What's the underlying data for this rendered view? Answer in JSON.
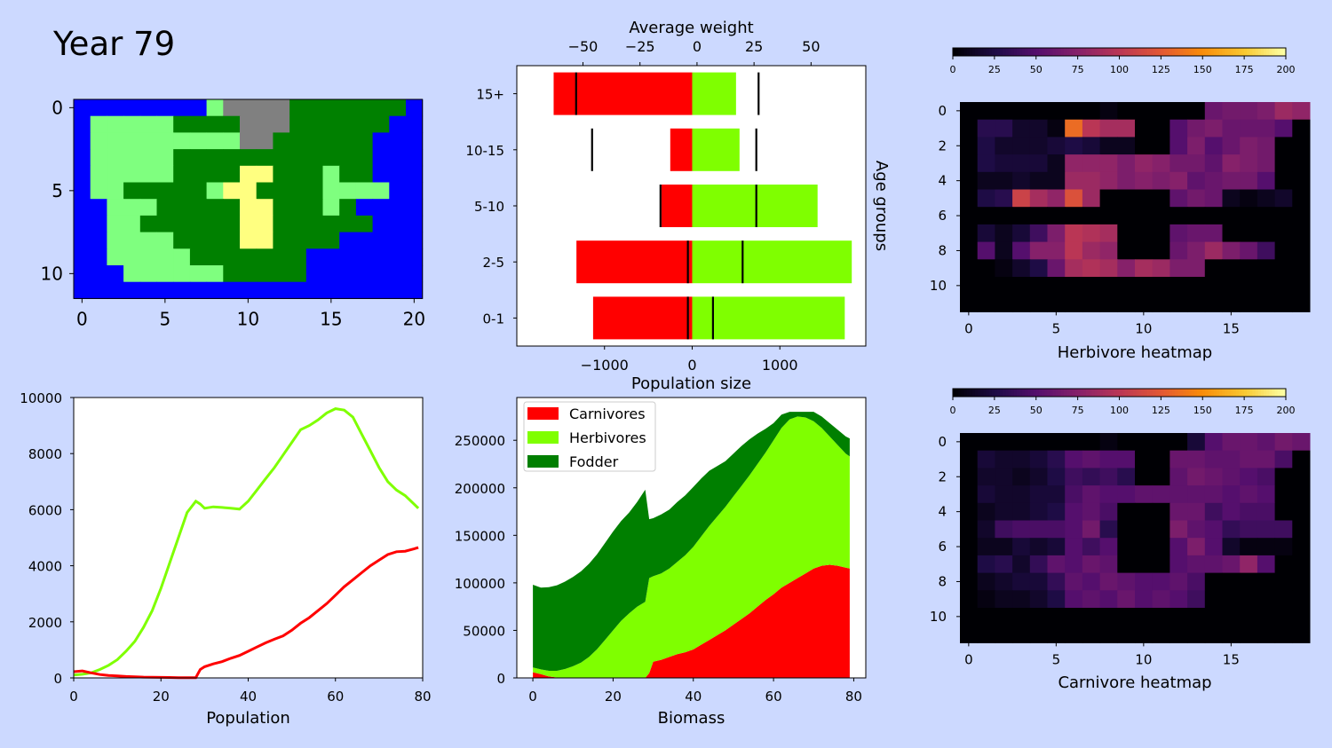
{
  "header": {
    "year_label": "Year 79"
  },
  "colors": {
    "water": "#0000ff",
    "lowland": "#7fff7f",
    "highland": "#008000",
    "desert": "#ffff80",
    "mountain": "#808080",
    "carnivores": "#ff0000",
    "herbivores": "#7fff00",
    "fodder": "#007f00",
    "panel_bg": "#ccd9ff"
  },
  "chart_data": [
    {
      "id": "island_map",
      "type": "heatmap",
      "title": "",
      "legend": {
        "W": "water",
        "L": "lowland",
        "H": "highland",
        "D": "desert",
        "M": "mountain"
      },
      "grid": [
        "WWWWWWWWLMMMMHHHHHHHW",
        "WLLLLLHHHHMMMHHHHHHWW",
        "WLLLLLLLLLMMHHHHHHWWW",
        "WLLLLLHHHHHHHHHHHHWWW",
        "WLLLLLHHHHDDHHHLHHWWW",
        "WLLHHHHHLDDHHHHLLLLWW",
        "WWLLLHHHHHDDHHHLHWWWW",
        "WWLLHHHHHHDDHHHHHHWWW",
        "WWLLLLHHHHDDHHHHWWWWW",
        "WWLLLLLHHHHHHHWWWWWWW",
        "WWWLLLLLLHHHHHWWWWWWW",
        "WWWWWWWWWWWWWWWWWWWWW"
      ],
      "xticks": [
        0,
        5,
        10,
        15,
        20
      ],
      "yticks": [
        0,
        5,
        10
      ]
    },
    {
      "id": "age_groups",
      "type": "bar",
      "title": "Average weight",
      "xlabel": "Population size",
      "ylabel": "Age groups",
      "categories": [
        "0-1",
        "2-5",
        "5-10",
        "10-15",
        "15+"
      ],
      "series": [
        {
          "name": "Carnivores",
          "values": [
            -1130,
            -1320,
            -350,
            -250,
            -1580
          ]
        },
        {
          "name": "Herbivores",
          "values": [
            1740,
            1820,
            1430,
            540,
            500
          ]
        }
      ],
      "avg_weight": {
        "carnivores": [
          -4,
          -4,
          -16,
          -46,
          -53
        ],
        "herbivores": [
          7,
          20,
          26,
          26,
          27
        ]
      },
      "xlim": [
        -2000,
        1980
      ],
      "xticks": [
        -1000,
        0,
        1000
      ],
      "top_xlim": [
        -79,
        74
      ],
      "top_xticks": [
        -50,
        -25,
        0,
        25,
        50
      ],
      "top_xtick_labels": [
        "−50",
        "−25",
        "0",
        "25",
        "50"
      ],
      "xtick_labels": [
        "−1000",
        "0",
        "1000"
      ]
    },
    {
      "id": "herbivore_heatmap",
      "type": "heatmap",
      "xlabel": "Herbivore heatmap",
      "vmin": 0,
      "vmax": 200,
      "colorbar_ticks": [
        0,
        25,
        50,
        75,
        100,
        125,
        150,
        175,
        200
      ],
      "xticks": [
        0,
        5,
        10,
        15
      ],
      "yticks": [
        0,
        2,
        4,
        6,
        8,
        10
      ],
      "values": [
        [
          0,
          0,
          0,
          0,
          0,
          0,
          0,
          0,
          5,
          0,
          0,
          0,
          0,
          0,
          60,
          65,
          65,
          70,
          85,
          80
        ],
        [
          0,
          30,
          30,
          15,
          15,
          5,
          135,
          100,
          90,
          90,
          0,
          0,
          50,
          65,
          70,
          60,
          60,
          60,
          50,
          0
        ],
        [
          0,
          25,
          15,
          15,
          15,
          20,
          25,
          20,
          10,
          10,
          0,
          0,
          50,
          70,
          50,
          60,
          70,
          65,
          0,
          0
        ],
        [
          0,
          25,
          20,
          20,
          20,
          10,
          80,
          80,
          80,
          70,
          80,
          75,
          65,
          65,
          55,
          75,
          70,
          65,
          0,
          0
        ],
        [
          0,
          10,
          10,
          15,
          10,
          10,
          85,
          85,
          80,
          70,
          75,
          70,
          75,
          55,
          60,
          65,
          65,
          50,
          0,
          0
        ],
        [
          0,
          25,
          30,
          110,
          90,
          80,
          120,
          85,
          0,
          0,
          0,
          0,
          55,
          65,
          60,
          10,
          5,
          10,
          15,
          0
        ],
        [
          0,
          0,
          0,
          0,
          0,
          0,
          0,
          0,
          0,
          0,
          0,
          0,
          0,
          0,
          0,
          0,
          0,
          0,
          0,
          0
        ],
        [
          0,
          20,
          10,
          20,
          40,
          70,
          100,
          95,
          90,
          0,
          0,
          0,
          55,
          60,
          60,
          0,
          0,
          0,
          0,
          0
        ],
        [
          0,
          50,
          10,
          50,
          75,
          75,
          100,
          85,
          80,
          0,
          0,
          0,
          60,
          70,
          85,
          70,
          60,
          40,
          0,
          0
        ],
        [
          0,
          0,
          5,
          15,
          25,
          60,
          90,
          95,
          90,
          75,
          90,
          85,
          70,
          70,
          0,
          0,
          0,
          0,
          0,
          0
        ],
        [
          0,
          0,
          0,
          0,
          0,
          0,
          0,
          0,
          0,
          0,
          0,
          0,
          0,
          0,
          0,
          0,
          0,
          0,
          0,
          0
        ],
        [
          0,
          0,
          0,
          0,
          0,
          0,
          0,
          0,
          0,
          0,
          0,
          0,
          0,
          0,
          0,
          0,
          0,
          0,
          0,
          0
        ]
      ]
    },
    {
      "id": "carnivore_heatmap",
      "type": "heatmap",
      "xlabel": "Carnivore heatmap",
      "vmin": 0,
      "vmax": 200,
      "colorbar_ticks": [
        0,
        25,
        50,
        75,
        100,
        125,
        150,
        175,
        200
      ],
      "xticks": [
        0,
        5,
        10,
        15
      ],
      "yticks": [
        0,
        2,
        4,
        6,
        8,
        10
      ],
      "values": [
        [
          0,
          0,
          0,
          0,
          0,
          0,
          0,
          0,
          5,
          0,
          0,
          0,
          0,
          20,
          50,
          60,
          60,
          55,
          65,
          60
        ],
        [
          0,
          20,
          15,
          15,
          20,
          30,
          50,
          55,
          50,
          50,
          0,
          0,
          60,
          60,
          55,
          55,
          60,
          60,
          45,
          0
        ],
        [
          0,
          15,
          15,
          10,
          15,
          25,
          40,
          35,
          40,
          30,
          0,
          0,
          55,
          65,
          60,
          55,
          50,
          45,
          0,
          0
        ],
        [
          0,
          20,
          15,
          15,
          20,
          20,
          45,
          55,
          50,
          50,
          55,
          55,
          55,
          55,
          55,
          50,
          55,
          50,
          0,
          0
        ],
        [
          0,
          10,
          15,
          15,
          20,
          25,
          50,
          55,
          45,
          0,
          0,
          0,
          60,
          60,
          40,
          50,
          45,
          45,
          0,
          0
        ],
        [
          0,
          15,
          40,
          45,
          45,
          45,
          50,
          65,
          30,
          0,
          0,
          0,
          70,
          55,
          50,
          35,
          40,
          40,
          40,
          0
        ],
        [
          0,
          10,
          10,
          20,
          15,
          20,
          50,
          40,
          50,
          0,
          0,
          0,
          50,
          70,
          50,
          15,
          5,
          5,
          5,
          0
        ],
        [
          0,
          25,
          30,
          15,
          35,
          55,
          50,
          60,
          55,
          0,
          0,
          0,
          50,
          55,
          55,
          60,
          80,
          50,
          0,
          0
        ],
        [
          0,
          10,
          15,
          20,
          20,
          35,
          55,
          50,
          60,
          55,
          50,
          50,
          55,
          45,
          0,
          0,
          0,
          0,
          0,
          0
        ],
        [
          0,
          5,
          10,
          10,
          15,
          25,
          50,
          55,
          50,
          60,
          50,
          55,
          50,
          40,
          0,
          0,
          0,
          0,
          0,
          0
        ],
        [
          0,
          0,
          0,
          0,
          0,
          0,
          0,
          0,
          0,
          0,
          0,
          0,
          0,
          0,
          0,
          0,
          0,
          0,
          0,
          0
        ],
        [
          0,
          0,
          0,
          0,
          0,
          0,
          0,
          0,
          0,
          0,
          0,
          0,
          0,
          0,
          0,
          0,
          0,
          0,
          0,
          0
        ]
      ]
    },
    {
      "id": "population",
      "type": "line",
      "xlabel": "Population",
      "xlim": [
        0,
        80
      ],
      "ylim": [
        0,
        10000
      ],
      "xticks": [
        0,
        20,
        40,
        60,
        80
      ],
      "yticks": [
        0,
        2000,
        4000,
        6000,
        8000,
        10000
      ],
      "x": [
        0,
        2,
        4,
        6,
        8,
        10,
        12,
        14,
        16,
        18,
        20,
        22,
        24,
        26,
        28,
        29,
        30,
        32,
        34,
        36,
        38,
        40,
        42,
        44,
        46,
        48,
        50,
        52,
        54,
        56,
        58,
        60,
        62,
        64,
        66,
        68,
        70,
        72,
        74,
        76,
        78,
        79
      ],
      "series": [
        {
          "name": "Herbivores",
          "values": [
            100,
            130,
            180,
            300,
            450,
            650,
            950,
            1300,
            1800,
            2400,
            3200,
            4100,
            5000,
            5900,
            6300,
            6200,
            6050,
            6100,
            6080,
            6050,
            6020,
            6300,
            6700,
            7100,
            7500,
            7950,
            8400,
            8850,
            9000,
            9200,
            9450,
            9600,
            9550,
            9300,
            8700,
            8100,
            7500,
            7000,
            6700,
            6500,
            6200,
            6050
          ]
        },
        {
          "name": "Carnivores",
          "values": [
            220,
            250,
            180,
            120,
            90,
            70,
            50,
            40,
            30,
            25,
            20,
            15,
            10,
            10,
            10,
            300,
            400,
            500,
            580,
            700,
            800,
            950,
            1100,
            1250,
            1380,
            1500,
            1700,
            1950,
            2150,
            2400,
            2650,
            2950,
            3250,
            3500,
            3750,
            4000,
            4200,
            4400,
            4500,
            4520,
            4600,
            4650
          ]
        }
      ]
    },
    {
      "id": "biomass",
      "type": "area",
      "xlabel": "Biomass",
      "xlim": [
        -4,
        83
      ],
      "ylim": [
        0,
        295000
      ],
      "xticks": [
        0,
        20,
        40,
        60,
        80
      ],
      "yticks": [
        0,
        50000,
        100000,
        150000,
        200000,
        250000
      ],
      "legend_position": "top-left",
      "x": [
        0,
        2,
        4,
        6,
        8,
        10,
        12,
        14,
        16,
        18,
        20,
        22,
        24,
        26,
        28,
        29,
        30,
        32,
        34,
        36,
        38,
        40,
        42,
        44,
        46,
        48,
        50,
        52,
        54,
        56,
        58,
        60,
        62,
        64,
        66,
        68,
        70,
        72,
        74,
        76,
        78,
        79
      ],
      "series": [
        {
          "name": "Carnivores",
          "values": [
            6000,
            4000,
            1500,
            500,
            300,
            200,
            100,
            50,
            30,
            20,
            10,
            5,
            5,
            5,
            5,
            5000,
            17000,
            19000,
            22000,
            25000,
            27000,
            30000,
            35000,
            40000,
            45000,
            50000,
            56000,
            62000,
            68000,
            75000,
            82000,
            88000,
            95000,
            100000,
            105000,
            110000,
            115000,
            118000,
            119000,
            118000,
            116000,
            115000
          ]
        },
        {
          "name": "Herbivores",
          "values": [
            5000,
            5000,
            6000,
            7000,
            9000,
            12000,
            16000,
            22000,
            30000,
            40000,
            50000,
            60000,
            68000,
            75000,
            80000,
            100000,
            90000,
            91000,
            93000,
            97000,
            102000,
            108000,
            114000,
            120000,
            125000,
            130000,
            135000,
            140000,
            145000,
            150000,
            155000,
            162000,
            168000,
            172000,
            170000,
            164000,
            155000,
            145000,
            135000,
            127000,
            120000,
            118000
          ]
        },
        {
          "name": "Fodder",
          "values": [
            87000,
            86000,
            88000,
            90000,
            92000,
            94000,
            96000,
            98000,
            100000,
            102000,
            104000,
            105000,
            106000,
            110000,
            118000,
            62000,
            61000,
            62000,
            62000,
            63000,
            63000,
            63000,
            61000,
            58000,
            53000,
            48000,
            45000,
            42000,
            38000,
            32000,
            25000,
            18000,
            14000,
            8000,
            5000,
            6000,
            10000,
            12000,
            14000,
            16000,
            18000,
            19000
          ]
        }
      ]
    }
  ]
}
